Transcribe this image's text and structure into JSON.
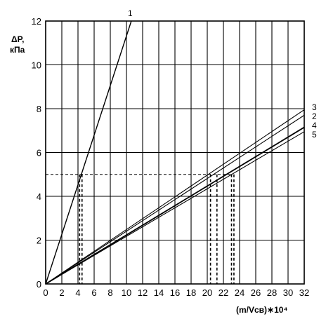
{
  "chart_data": {
    "type": "line",
    "ylabel_line1": "ΔP,",
    "ylabel_line2": "кПа",
    "xlabel": "(m/Vсв)∗10⁴",
    "xlim": [
      0,
      32
    ],
    "ylim": [
      0,
      12
    ],
    "xticks": [
      "0",
      "2",
      "4",
      "6",
      "8",
      "10",
      "12",
      "14",
      "16",
      "18",
      "20",
      "22",
      "24",
      "26",
      "28",
      "30",
      "32"
    ],
    "yticks": [
      "0",
      "2",
      "4",
      "6",
      "8",
      "10",
      "12"
    ],
    "grid": true,
    "series": [
      {
        "name": "1",
        "x": [
          0,
          10.6
        ],
        "y": [
          0,
          12.0
        ],
        "stroke": 1.4
      },
      {
        "name": "3",
        "x": [
          0,
          32
        ],
        "y": [
          0,
          7.95
        ],
        "stroke": 1.1
      },
      {
        "name": "2",
        "x": [
          0,
          32
        ],
        "y": [
          0,
          7.7
        ],
        "stroke": 1.1
      },
      {
        "name": "4",
        "x": [
          0,
          32
        ],
        "y": [
          0,
          7.15
        ],
        "stroke": 1.8
      },
      {
        "name": "5",
        "x": [
          0,
          32
        ],
        "y": [
          0,
          6.95
        ],
        "stroke": 1.1
      }
    ],
    "reference_level": {
      "y": 5,
      "x_from": 0,
      "x_to": 23.0
    },
    "reference_drops": [
      4.2,
      4.5,
      20.4,
      21.2,
      23.0,
      23.3
    ]
  }
}
